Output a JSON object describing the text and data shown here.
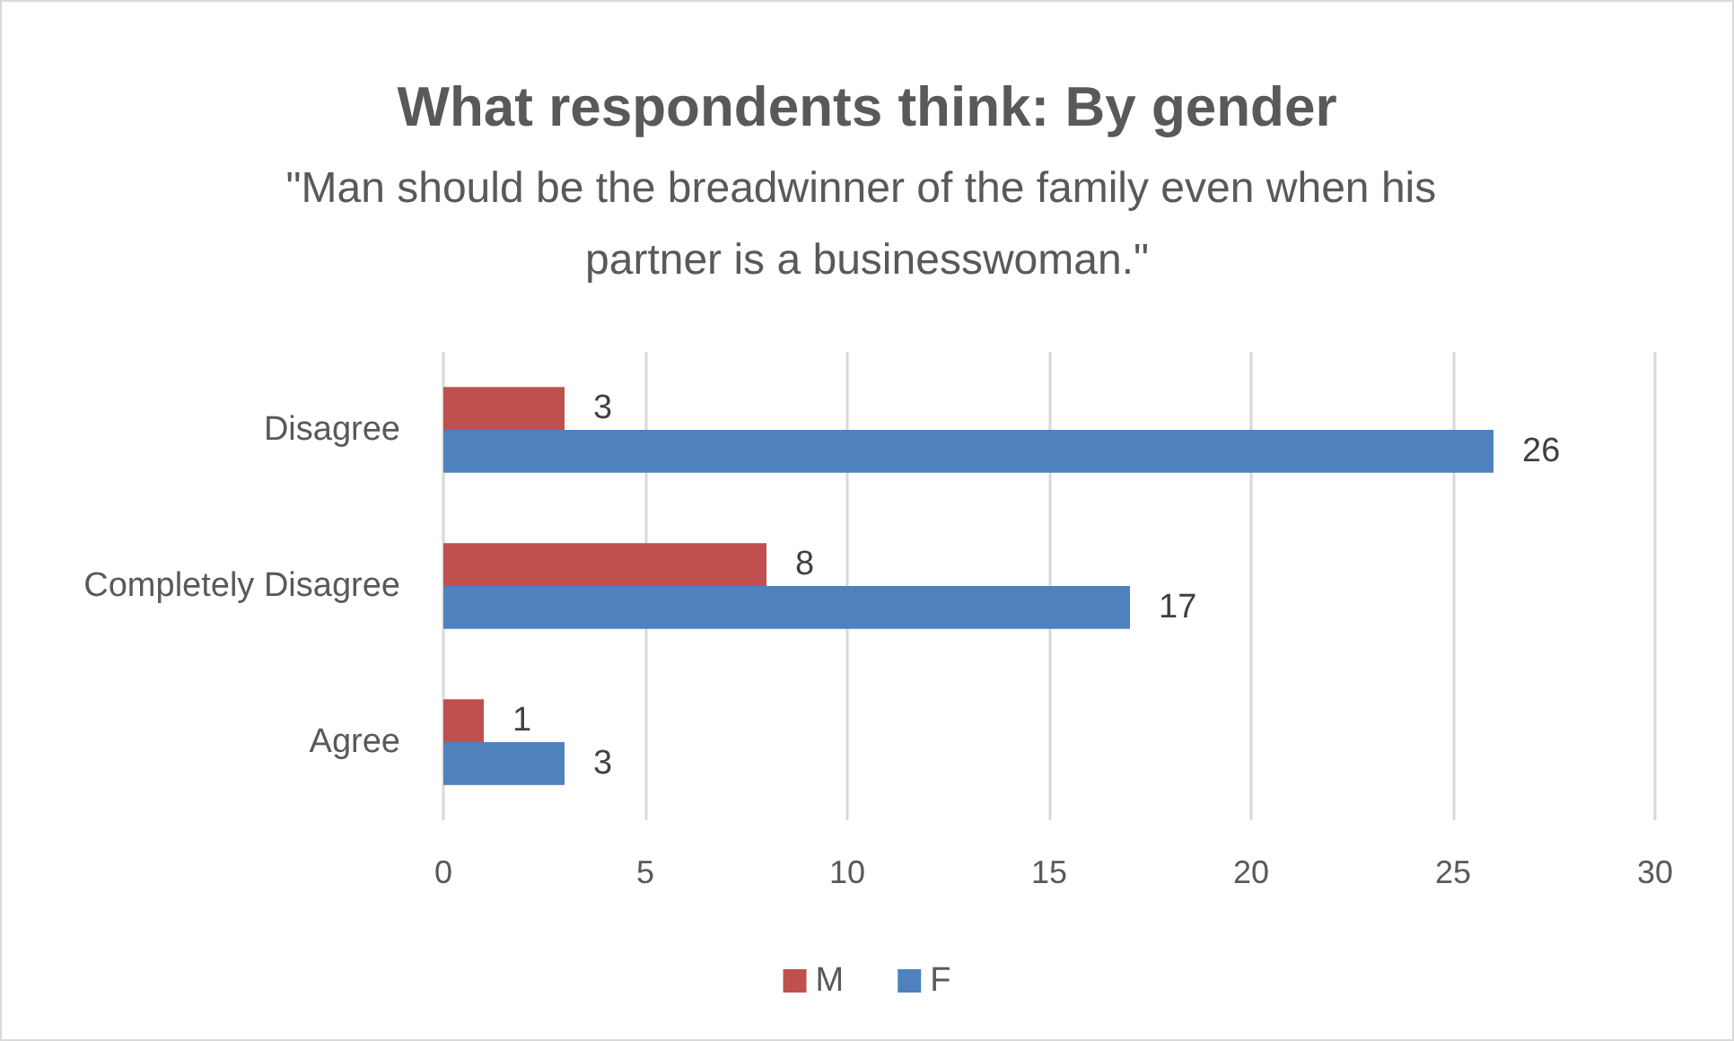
{
  "chart_data": {
    "type": "bar",
    "orientation": "horizontal",
    "title": "What respondents think: By gender",
    "subtitle": "\"Man should be the breadwinner of the family even when his partner is a businesswoman.\"",
    "categories": [
      "Disagree",
      "Completely Disagree",
      "Agree"
    ],
    "series": [
      {
        "name": "M",
        "color": "#c0504d",
        "values": [
          3,
          8,
          1
        ]
      },
      {
        "name": "F",
        "color": "#4f81bd",
        "values": [
          26,
          17,
          3
        ]
      }
    ],
    "xlim": [
      0,
      30
    ],
    "xticks": [
      0,
      5,
      10,
      15,
      20,
      25,
      30
    ],
    "grid": "x",
    "legend": "bottom",
    "data_labels": true
  }
}
